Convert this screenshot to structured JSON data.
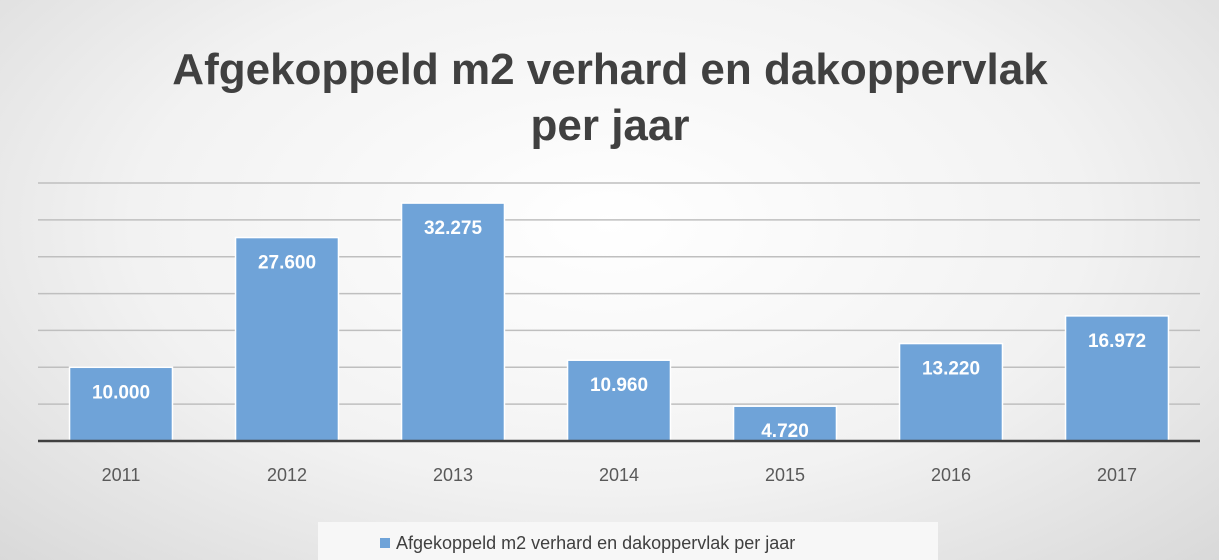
{
  "chart_data": {
    "type": "bar",
    "title": "Afgekoppeld m2 verhard en dakoppervlak per jaar",
    "categories": [
      "2011",
      "2012",
      "2013",
      "2014",
      "2015",
      "2016",
      "2017"
    ],
    "series": [
      {
        "name": "Afgekoppeld m2 verhard en dakoppervlak per jaar",
        "color": "#6fa3d8",
        "values": [
          10000,
          27600,
          32275,
          10960,
          4720,
          13220,
          16972
        ],
        "value_labels": [
          "10.000",
          "27.600",
          "32.275",
          "10.960",
          "4.720",
          "13.220",
          "16.972"
        ]
      }
    ],
    "ylim": [
      0,
      35000
    ],
    "yticks": [
      0,
      5000,
      10000,
      15000,
      20000,
      25000,
      30000,
      35000
    ],
    "grid": true
  }
}
